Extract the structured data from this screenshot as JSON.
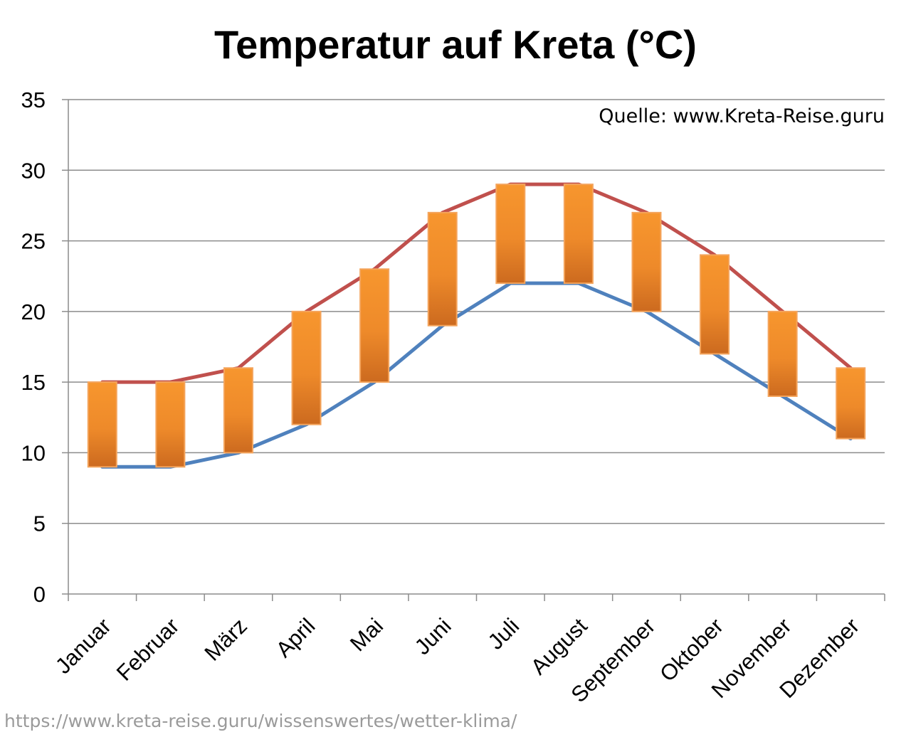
{
  "chart_data": {
    "type": "line",
    "title": "Temperatur auf Kreta (°C)",
    "source": "Quelle: www.Kreta-Reise.guru",
    "footer_url": "https://www.kreta-reise.guru/wissenswertes/wetter-klima/",
    "categories": [
      "Januar",
      "Februar",
      "März",
      "April",
      "Mai",
      "Juni",
      "Juli",
      "August",
      "September",
      "Oktober",
      "November",
      "Dezember"
    ],
    "series": [
      {
        "values": [
          15,
          15,
          16,
          20,
          23,
          27,
          29,
          29,
          27,
          24,
          20,
          16
        ],
        "color": "#c0504d"
      },
      {
        "values": [
          9,
          9,
          10,
          12,
          15,
          19,
          22,
          22,
          20,
          17,
          14,
          11
        ],
        "color": "#4f81bd"
      }
    ],
    "range_bars": {
      "color_top": "#f7962e",
      "color_bottom": "#cc6a1f",
      "border": "#f4a45c"
    },
    "ylim": [
      0,
      35
    ],
    "yticks": [
      0,
      5,
      10,
      15,
      20,
      25,
      30,
      35
    ],
    "grid": true,
    "legend": "none"
  }
}
